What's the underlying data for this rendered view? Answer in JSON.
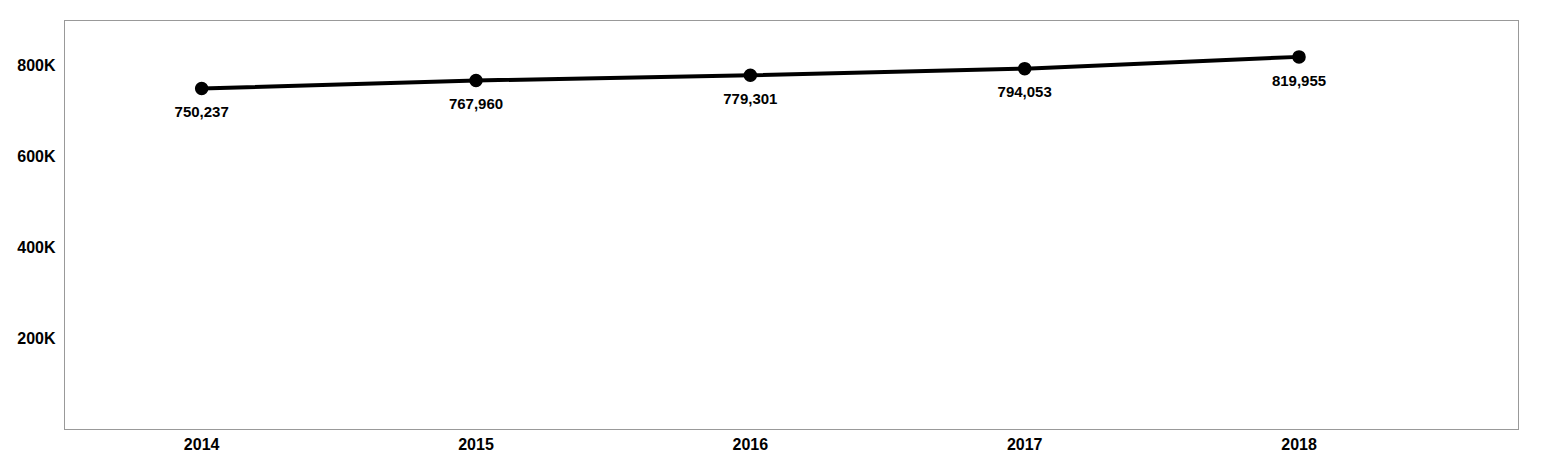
{
  "chart_data": {
    "type": "line",
    "x": [
      2014,
      2015,
      2016,
      2017,
      2018
    ],
    "values": [
      750237,
      767960,
      779301,
      794053,
      819955
    ],
    "value_labels": [
      "750,237",
      "767,960",
      "779,301",
      "794,053",
      "819,955"
    ],
    "data_labels": true,
    "color": "#000000",
    "marker": "circle",
    "xlim": [
      2013.5,
      2018.8
    ],
    "xticks": [
      2014,
      2015,
      2016,
      2017,
      2018
    ],
    "ylim": [
      0,
      900000
    ],
    "yticks": [
      {
        "value": 200000,
        "label": "200K"
      },
      {
        "value": 400000,
        "label": "400K"
      },
      {
        "value": 600000,
        "label": "600K"
      },
      {
        "value": 800000,
        "label": "800K"
      }
    ],
    "grid": false
  }
}
